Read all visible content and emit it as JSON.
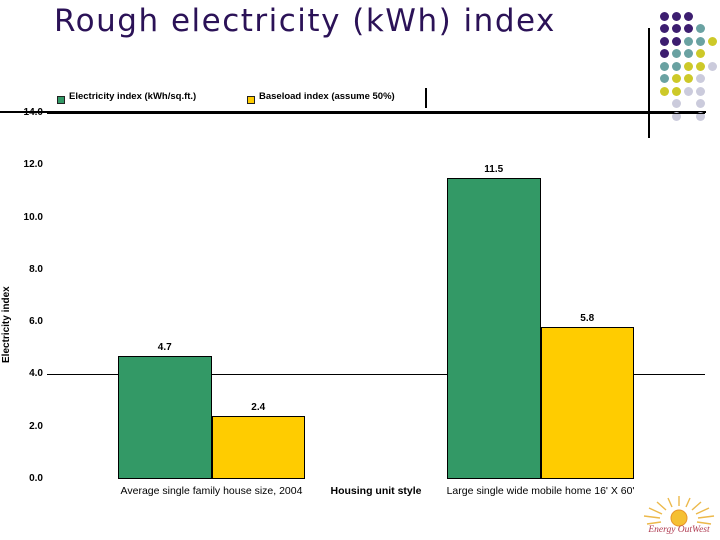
{
  "slide": {
    "title": "Rough electricity (kWh) index",
    "title_color": "#2b1257"
  },
  "legend": {
    "items": [
      {
        "label": "Electricity index (kWh/sq.ft.)",
        "color": "#339966"
      },
      {
        "label": "Baseload index (assume 50%)",
        "color": "#ffcc00"
      }
    ]
  },
  "chart_data": {
    "type": "bar",
    "categories": [
      "Average single family house size, 2004",
      "Large single wide mobile home 16' X 60'"
    ],
    "series": [
      {
        "name": "Electricity index (kWh/sq.ft.)",
        "color": "#339966",
        "values": [
          4.7,
          11.5
        ]
      },
      {
        "name": "Baseload index (assume 50%)",
        "color": "#ffcc00",
        "values": [
          2.4,
          5.8
        ]
      }
    ],
    "data_labels": [
      [
        "4.7",
        "11.5"
      ],
      [
        "2.4",
        "5.8"
      ]
    ],
    "xlabel": "Housing unit style",
    "ylabel": "Electricity index",
    "ylim": [
      0,
      14
    ],
    "yticks": [
      "14.0",
      "12.0",
      "10.0",
      "8.0",
      "6.0",
      "4.0",
      "2.0",
      "0.0"
    ],
    "gridlines_at": [
      4,
      14
    ],
    "legend_position": "top",
    "grid": "partial"
  },
  "logo": {
    "text": "Energy OutWest",
    "text_color": "#ae3a50",
    "sun_color": "#f5c033"
  },
  "decor": {
    "dot_colors": {
      "P": "#3d1e70",
      "T": "#6aa2a2",
      "Y": "#cdc929",
      "G": "#cbcbdc"
    },
    "dot_matrix": [
      [
        "P",
        "P",
        "P",
        "",
        ""
      ],
      [
        "P",
        "P",
        "P",
        "T",
        ""
      ],
      [
        "P",
        "P",
        "T",
        "T",
        "Y"
      ],
      [
        "P",
        "T",
        "T",
        "Y",
        ""
      ],
      [
        "T",
        "T",
        "Y",
        "Y",
        "G"
      ],
      [
        "T",
        "Y",
        "Y",
        "G",
        ""
      ],
      [
        "Y",
        "Y",
        "G",
        "G",
        ""
      ],
      [
        "",
        "G",
        "",
        "G",
        ""
      ],
      [
        "",
        "G",
        "",
        "G",
        ""
      ]
    ]
  }
}
